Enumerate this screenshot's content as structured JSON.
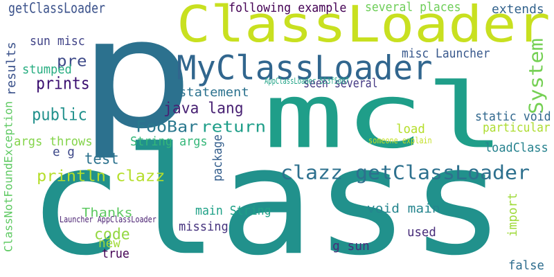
{
  "colors": {
    "background": "#ffffff"
  },
  "words": [
    {
      "text": "class",
      "color": "#21918c"
    },
    {
      "text": "p",
      "color": "#2c718e"
    },
    {
      "text": "mcl",
      "color": "#1f9e89"
    },
    {
      "text": "ClassLoader",
      "color": "#c8e020"
    },
    {
      "text": "MyClassLoader",
      "color": "#31668e"
    },
    {
      "text": "clazz getClassLoader",
      "color": "#2d708e"
    },
    {
      "text": "prints",
      "color": "#3b0f70"
    },
    {
      "text": "pre",
      "color": "#3e4a89"
    },
    {
      "text": "public",
      "color": "#21918c"
    },
    {
      "text": "java lang",
      "color": "#482173"
    },
    {
      "text": "FooBar",
      "color": "#2a788e"
    },
    {
      "text": "return",
      "color": "#1f9e89"
    },
    {
      "text": "test",
      "color": "#2c728e"
    },
    {
      "text": "println clazz",
      "color": "#b5de2b"
    },
    {
      "text": "System",
      "color": "#75d054"
    },
    {
      "text": "code",
      "color": "#93d741"
    },
    {
      "text": "getClassLoader",
      "color": "#3b528b"
    },
    {
      "text": "following example",
      "color": "#440154"
    },
    {
      "text": "several places",
      "color": "#6ece58"
    },
    {
      "text": "extends",
      "color": "#33638d"
    },
    {
      "text": "sun misc",
      "color": "#404387"
    },
    {
      "text": "misc Launcher",
      "color": "#38588c"
    },
    {
      "text": "results",
      "color": "#3b528b"
    },
    {
      "text": "stumped",
      "color": "#27ad81"
    },
    {
      "text": "seen several",
      "color": "#443983"
    },
    {
      "text": "statement",
      "color": "#2c728e"
    },
    {
      "text": "AppClassLoader 553f5d07",
      "color": "#20a386"
    },
    {
      "text": "ClassNotFoundException",
      "color": "#5ec962"
    },
    {
      "text": "static void",
      "color": "#31688e"
    },
    {
      "text": "particular",
      "color": "#addc30"
    },
    {
      "text": "load",
      "color": "#b5de2b"
    },
    {
      "text": "args throws",
      "color": "#84d44b"
    },
    {
      "text": "String args",
      "color": "#35b779"
    },
    {
      "text": "someone explain",
      "color": "#c2df23"
    },
    {
      "text": "loadClass",
      "color": "#26828e"
    },
    {
      "text": "e g",
      "color": "#3e4989"
    },
    {
      "text": "package",
      "color": "#355f8d"
    },
    {
      "text": "Thanks",
      "color": "#5ec962"
    },
    {
      "text": "main String",
      "color": "#1fa187"
    },
    {
      "text": "void main",
      "color": "#25858e"
    },
    {
      "text": "Launcher AppClassLoader",
      "color": "#481f70"
    },
    {
      "text": "missing",
      "color": "#46337e"
    },
    {
      "text": "import",
      "color": "#9fda3a"
    },
    {
      "text": "new",
      "color": "#a2da37"
    },
    {
      "text": "used",
      "color": "#472c7a"
    },
    {
      "text": "true",
      "color": "#440154"
    },
    {
      "text": "g sun",
      "color": "#472d7b"
    },
    {
      "text": "false",
      "color": "#2e6d8e"
    }
  ]
}
